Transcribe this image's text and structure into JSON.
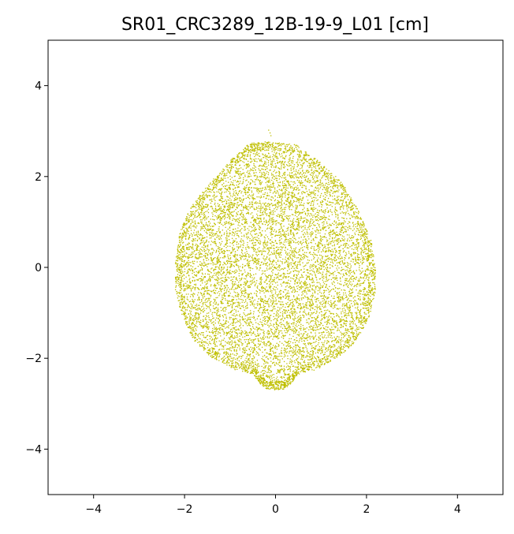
{
  "chart_data": {
    "type": "scatter",
    "title": "SR01_CRC3289_12B-19-9_L01 [cm]",
    "xlabel": "",
    "ylabel": "",
    "xlim": [
      -5,
      5
    ],
    "ylim": [
      -5,
      5
    ],
    "grid": false,
    "legend": "none",
    "x_ticks": [
      -4,
      -2,
      0,
      2,
      4
    ],
    "y_ticks": [
      -4,
      -2,
      0,
      2,
      4
    ],
    "x_tick_labels": [
      "−4",
      "−2",
      "0",
      "2",
      "4"
    ],
    "y_tick_labels": [
      "−4",
      "−2",
      "0",
      "2",
      "4"
    ],
    "marker_color": "#bfbf00",
    "series": [
      {
        "outline": {
          "x": [
            0.0,
            0.45,
            0.95,
            1.45,
            1.85,
            2.1,
            2.2,
            2.2,
            2.05,
            1.75,
            1.35,
            0.9,
            0.5,
            0.35,
            0.2,
            0.0,
            -0.2,
            -0.35,
            -0.5,
            -0.9,
            -1.4,
            -1.8,
            -2.05,
            -2.2,
            -2.2,
            -2.1,
            -1.85,
            -1.45,
            -0.95,
            -0.6,
            -0.35,
            0.0
          ],
          "y": [
            2.75,
            2.7,
            2.35,
            1.9,
            1.2,
            0.6,
            0.0,
            -0.55,
            -1.15,
            -1.65,
            -2.0,
            -2.25,
            -2.35,
            -2.55,
            -2.68,
            -2.7,
            -2.68,
            -2.55,
            -2.35,
            -2.25,
            -2.0,
            -1.6,
            -1.1,
            -0.5,
            0.1,
            0.8,
            1.35,
            1.85,
            2.4,
            2.72,
            2.78,
            2.75
          ]
        },
        "point_count": 9000,
        "outliers": {
          "x": [
            -0.15,
            -0.12,
            -0.1
          ],
          "y": [
            3.02,
            2.96,
            2.9
          ]
        }
      }
    ]
  }
}
